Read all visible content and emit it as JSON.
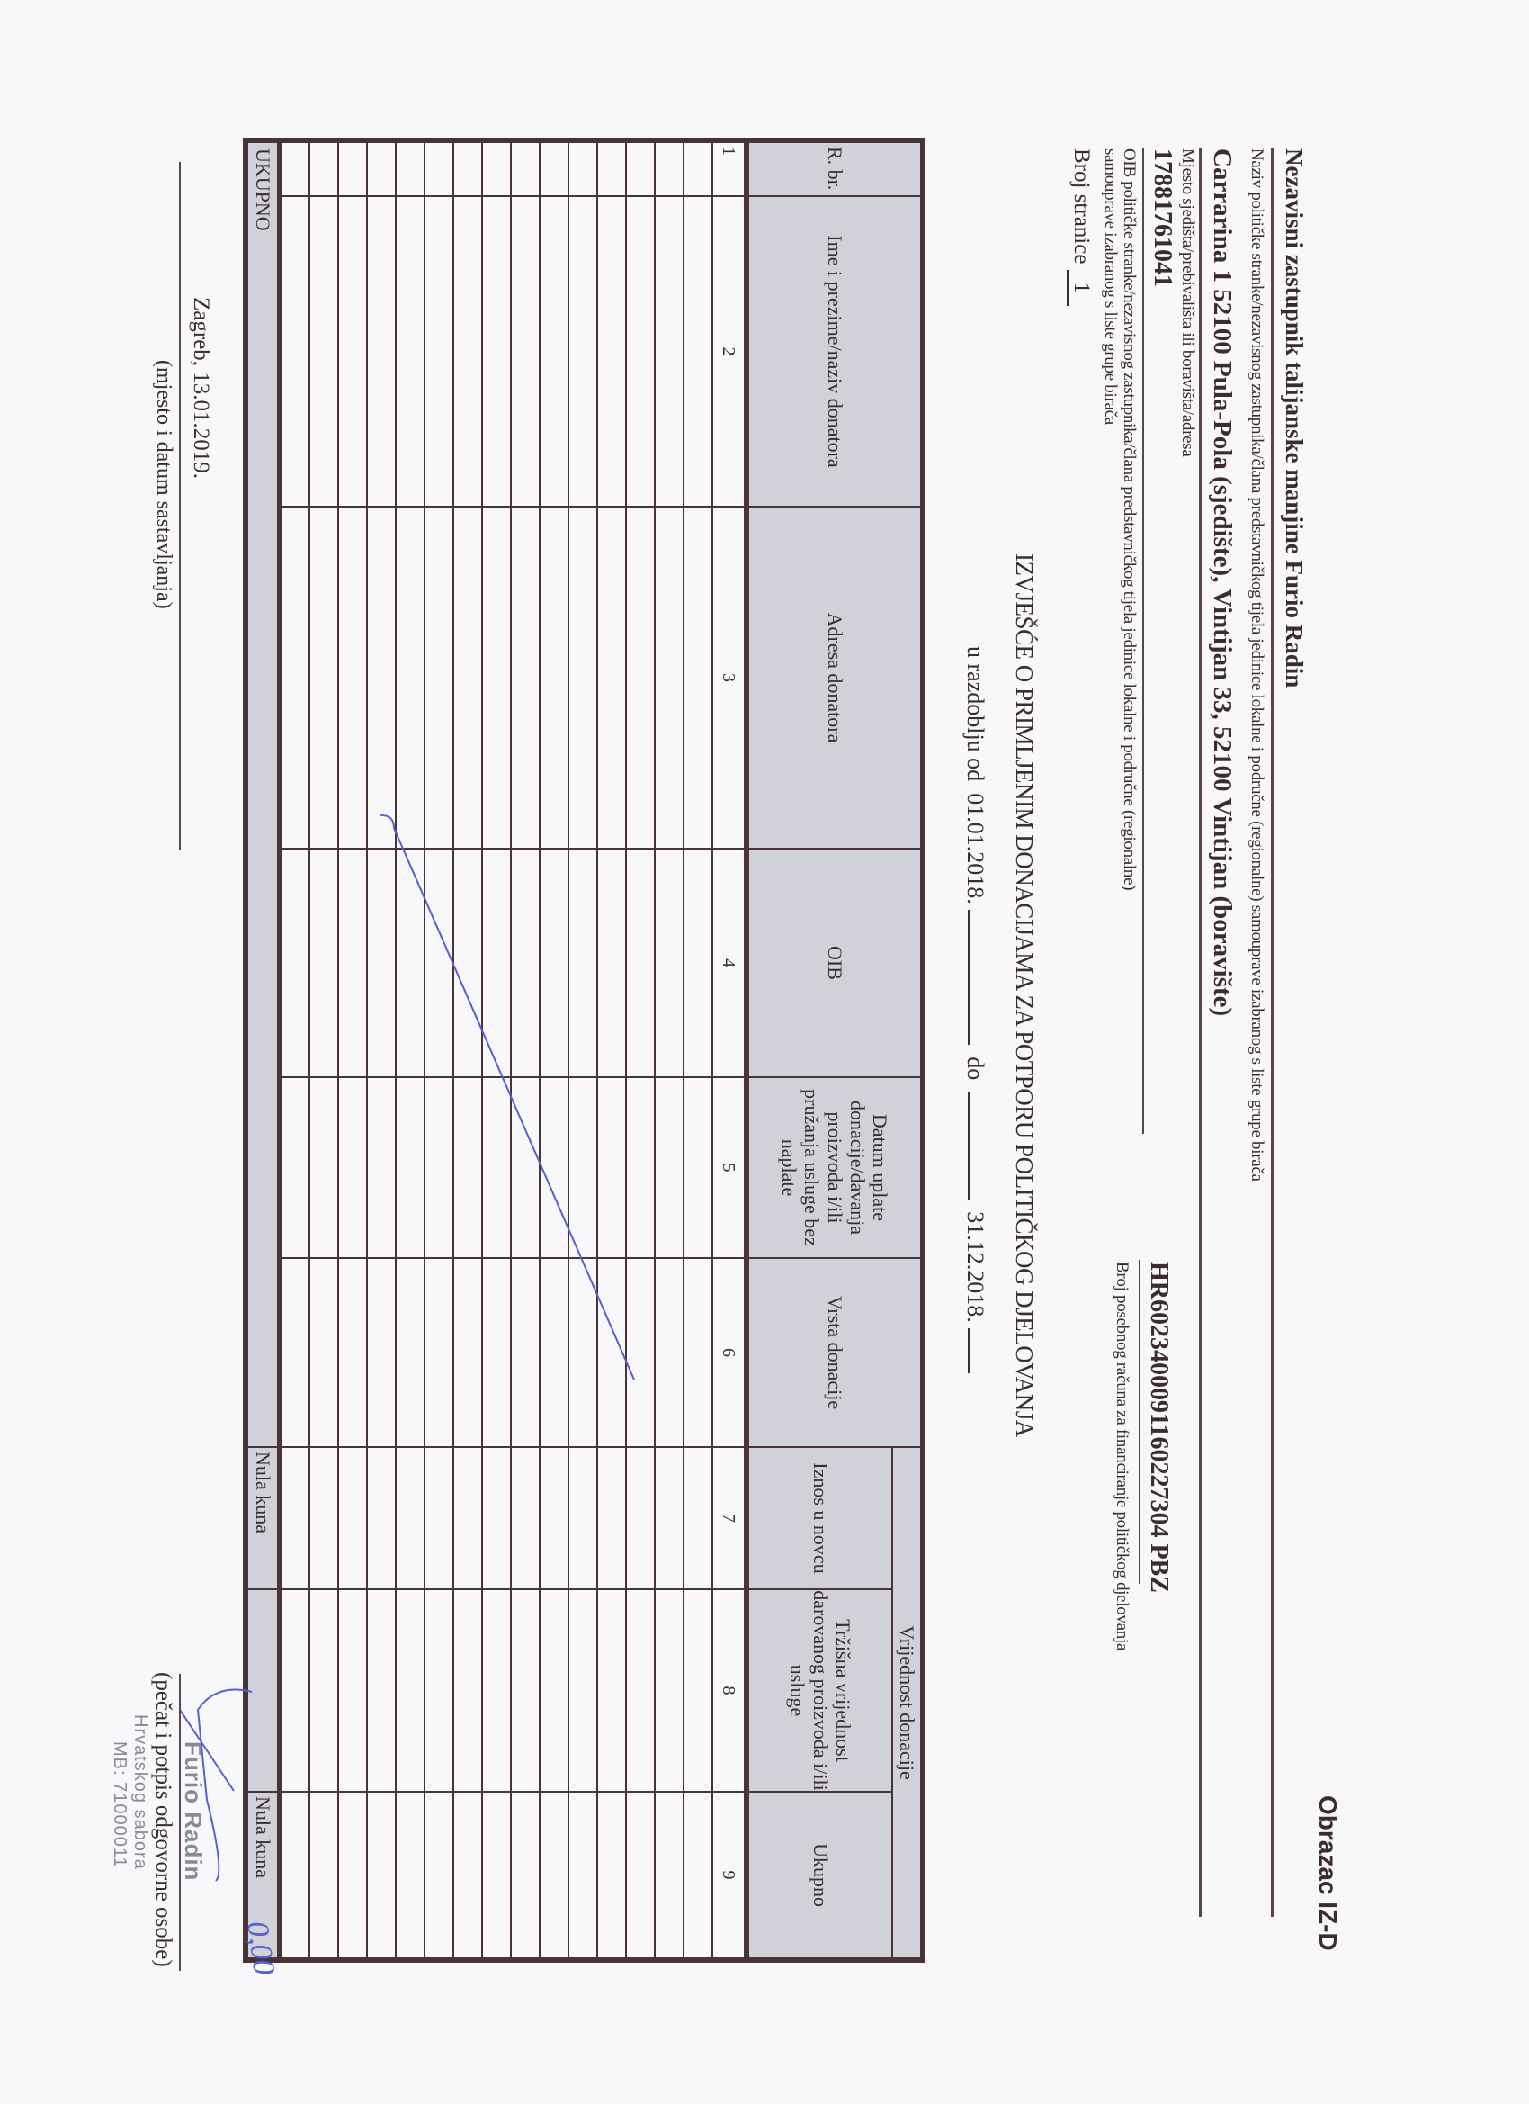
{
  "form_code": "Obrazac IZ-D",
  "party_name": "Nezavisni zastupnik talijanske manjine Furio Radin",
  "party_name_label": "Naziv političke stranke/nezavisnog zastupnika/člana predstavničkog tijela jedinice lokalne i područne (regionalne) samouprave izabranog s liste grupe birača",
  "address": "Carrarina 1 52100 Pula-Pola (sjedište), Vintijan 33, 52100 Vintijan (boravište)",
  "address_label": "Mjesto sjedišta/prebivališta ili boravišta/adresa",
  "oib": "17881761041",
  "oib_label_line1": "OIB političke stranke/nezavisnog zastupnika/člana predstavničkog tijela jedinice lokalne i područne (regionalne)",
  "oib_label_line2": "samouprave izabranog s liste grupe birača",
  "account": "HR6023400091160227304 PBZ",
  "account_label": "Broj posebnog računa za financiranje političkog djelovanja",
  "page_number_label": "Broj stranice",
  "page_number": "1",
  "report_title": "IZVJEŠĆE  O PRIMLJENIM DONACIJAMA ZA POTPORU POLITIČKOG DJELOVANJA",
  "period_prefix": "u razdoblju od",
  "period_from": "01.01.2018.",
  "period_to_label": "do",
  "period_to": "31.12.2018.",
  "table": {
    "group_header": "Vrijednost donacije",
    "columns": [
      "R. br.",
      "Ime i prezime/naziv donatora",
      "Adresa donatora",
      "OIB",
      "Datum uplate donacije/davanja proizvoda i/ili pružanja usluge bez naplate",
      "Vrsta donacije",
      "Iznos u novcu",
      "Tržišna vrijednost darovanog proizvoda i/ili usluge",
      "Ukupno"
    ],
    "column_numbers": [
      "1",
      "2",
      "3",
      "4",
      "5",
      "6",
      "7",
      "8",
      "9"
    ],
    "rows": [
      [],
      [],
      [],
      [],
      [],
      [],
      [],
      [],
      [],
      [],
      [],
      [],
      [],
      [],
      []
    ],
    "total": {
      "label": "UKUPNO",
      "cash": "Nula kuna",
      "market_value": "",
      "sum": "Nula kuna"
    }
  },
  "place_date": "Zagreb, 13.01.2019.",
  "place_date_label": "(mjesto i datum sastavljanja)",
  "signature_label": "(pečat i potpis odgovorne osobe)",
  "stamp": {
    "name": "Furio Radin",
    "line2": "Hrvatskog sabora",
    "line3": "MB: 71000011"
  },
  "handwritten_total": "0,00",
  "colors": {
    "ink": "#3b2c33",
    "header_fill": "#d0d1d9",
    "border": "#4a3239",
    "pen": "#5560d0"
  }
}
